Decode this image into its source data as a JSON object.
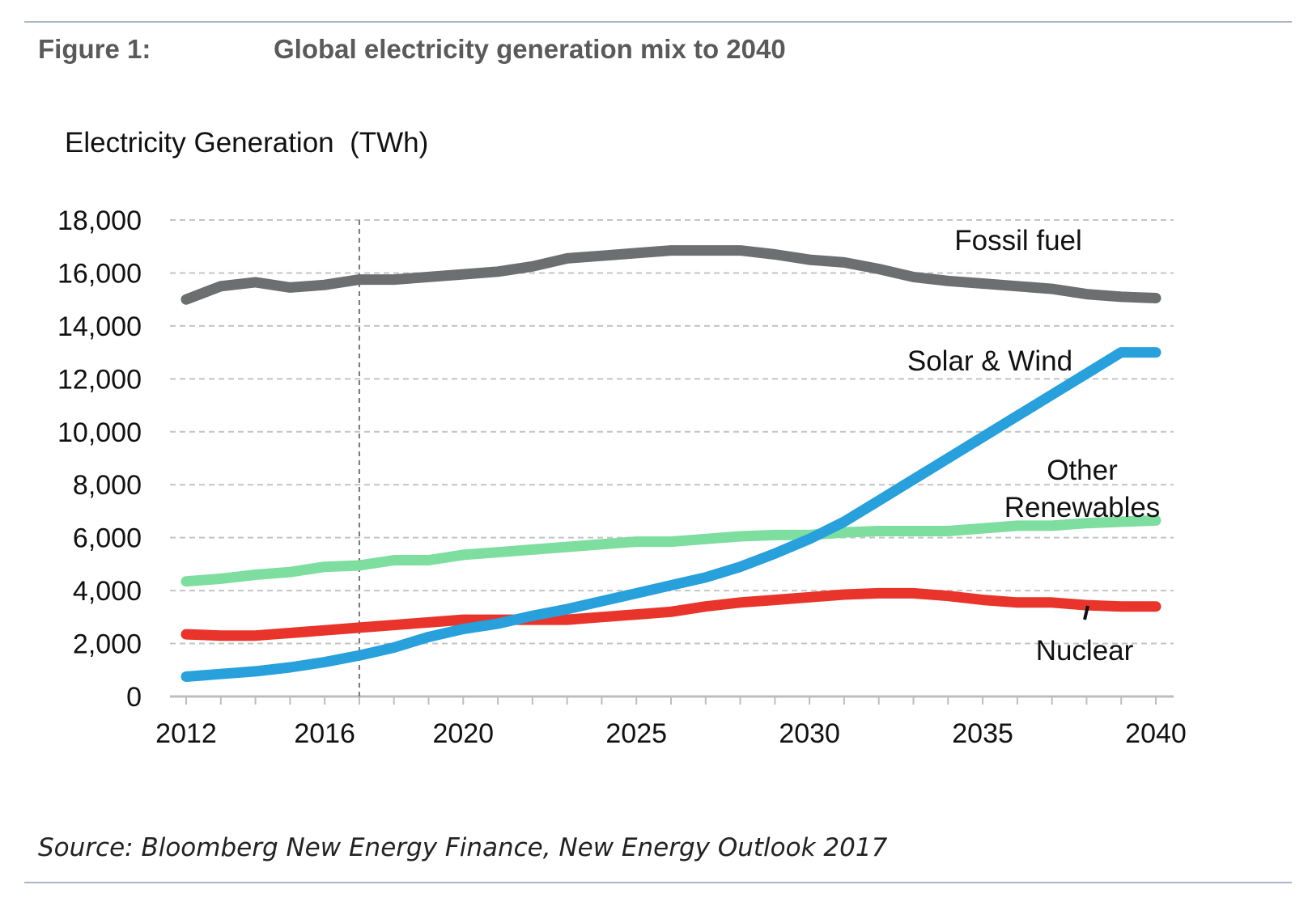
{
  "figure": {
    "label": "Figure 1:",
    "title": "Global electricity generation mix to 2040",
    "source": "Source: Bloomberg New Energy Finance, New Energy Outlook 2017"
  },
  "chart_data": {
    "type": "line",
    "title": "Global electricity generation mix to 2040",
    "ylabel": "Electricity Generation  (TWh)",
    "xlabel": "",
    "ylim": [
      0,
      18000
    ],
    "xlim": [
      2012,
      2040
    ],
    "yticks": [
      0,
      2000,
      4000,
      6000,
      8000,
      10000,
      12000,
      14000,
      16000,
      18000
    ],
    "ytick_labels": [
      "0",
      "2,000",
      "4,000",
      "6,000",
      "8,000",
      "10,000",
      "12,000",
      "14,000",
      "16,000",
      "18,000"
    ],
    "xticks": [
      2012,
      2016,
      2020,
      2025,
      2030,
      2035,
      2040
    ],
    "xtick_labels": [
      "2012",
      "2016",
      "2020",
      "2025",
      "2030",
      "2035",
      "2040"
    ],
    "grid": "horizontal dashed",
    "marker_line": {
      "x": 2017,
      "style": "dashed vertical"
    },
    "x": [
      2012,
      2013,
      2014,
      2015,
      2016,
      2017,
      2018,
      2019,
      2020,
      2021,
      2022,
      2023,
      2024,
      2025,
      2026,
      2027,
      2028,
      2029,
      2030,
      2031,
      2032,
      2033,
      2034,
      2035,
      2036,
      2037,
      2038,
      2039,
      2040
    ],
    "series": [
      {
        "name": "Fossil fuel",
        "color": "#6d6e70",
        "values": [
          15000,
          15500,
          15650,
          15450,
          15550,
          15750,
          15750,
          15850,
          15950,
          16050,
          16250,
          16550,
          16650,
          16750,
          16850,
          16850,
          16850,
          16700,
          16500,
          16400,
          16150,
          15850,
          15700,
          15600,
          15500,
          15400,
          15200,
          15100,
          15050
        ]
      },
      {
        "name": "Solar & Wind",
        "color": "#27a0dc",
        "values": [
          750,
          850,
          950,
          1100,
          1300,
          1550,
          1850,
          2250,
          2550,
          2750,
          3050,
          3300,
          3600,
          3900,
          4200,
          4500,
          4900,
          5400,
          5950,
          6600,
          7400,
          8200,
          9000,
          9800,
          10600,
          11400,
          12200,
          13000,
          13000
        ]
      },
      {
        "name": "Other Renewables",
        "color": "#7ddea0",
        "values": [
          4350,
          4450,
          4600,
          4700,
          4900,
          4950,
          5150,
          5150,
          5350,
          5450,
          5550,
          5650,
          5750,
          5850,
          5850,
          5950,
          6050,
          6100,
          6100,
          6200,
          6250,
          6250,
          6250,
          6350,
          6450,
          6450,
          6550,
          6600,
          6650
        ]
      },
      {
        "name": "Nuclear",
        "color": "#e8342b",
        "values": [
          2350,
          2300,
          2300,
          2400,
          2500,
          2600,
          2700,
          2800,
          2900,
          2900,
          2900,
          2900,
          3000,
          3100,
          3200,
          3400,
          3550,
          3650,
          3750,
          3850,
          3900,
          3900,
          3800,
          3650,
          3550,
          3550,
          3450,
          3400,
          3400
        ]
      }
    ],
    "series_labels": [
      {
        "series": "Fossil fuel",
        "lines": [
          "Fossil fuel"
        ]
      },
      {
        "series": "Solar & Wind",
        "lines": [
          "Solar & Wind"
        ]
      },
      {
        "series": "Other Renewables",
        "lines": [
          "Other",
          "Renewables"
        ]
      },
      {
        "series": "Nuclear",
        "lines": [
          "Nuclear"
        ]
      }
    ]
  }
}
